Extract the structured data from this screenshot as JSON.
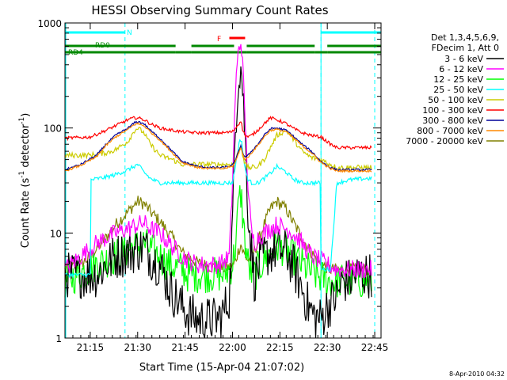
{
  "chart_data": {
    "type": "line",
    "title": "HESSI Observing Summary Count Rates",
    "xlabel": "Start Time (15-Apr-04 21:07:02)",
    "ylabel": "Count Rate (s⁻¹ detector⁻¹)",
    "ylabel_main": "Count Rate (s",
    "ylabel_exp1": "-1",
    "ylabel_mid": " detector",
    "ylabel_exp2": "-1",
    "ylabel_end": ")",
    "xlim": [
      0,
      100
    ],
    "ylim": [
      1,
      1000
    ],
    "yscale": "log",
    "grid": false,
    "xticks": [
      {
        "label": "21:15",
        "x": 8
      },
      {
        "label": "21:30",
        "x": 23
      },
      {
        "label": "21:45",
        "x": 38
      },
      {
        "label": "22:00",
        "x": 53
      },
      {
        "label": "22:15",
        "x": 68
      },
      {
        "label": "22:30",
        "x": 83
      },
      {
        "label": "22:45",
        "x": 98
      }
    ],
    "yticks": [
      {
        "label": "1",
        "y": 1
      },
      {
        "label": "10",
        "y": 10
      },
      {
        "label": "100",
        "y": 100
      },
      {
        "label": "1000",
        "y": 1000
      }
    ],
    "timestamp": "8-Apr-2010 04:32",
    "legend_header": [
      "Det 1,3,4,5,6,9,",
      "FDecim 1, Att 0"
    ],
    "legend_placement": "right",
    "series": [
      {
        "name": "3 - 6 keV",
        "color": "#000000",
        "x": [
          0,
          10,
          13,
          16,
          20,
          23,
          25,
          27,
          30,
          33,
          37,
          39,
          42,
          45,
          48,
          50,
          52,
          53,
          54,
          55,
          55.8,
          56,
          57,
          58,
          59,
          60,
          61,
          63,
          65,
          67,
          70,
          72,
          75,
          77,
          79,
          81,
          83,
          86,
          88,
          90,
          92,
          95,
          97
        ],
        "y": [
          4,
          4,
          5,
          6,
          6.5,
          7,
          7.5,
          6,
          5,
          3,
          2,
          1.7,
          1.5,
          1.5,
          1.5,
          1.7,
          2.5,
          12,
          120,
          350,
          380,
          320,
          80,
          15,
          7,
          3.5,
          4.5,
          6,
          6.5,
          7,
          6.5,
          5,
          3,
          2,
          1.6,
          1.5,
          2,
          2.5,
          3.5,
          3.5,
          4,
          4,
          4
        ]
      },
      {
        "name": "6 - 12 keV",
        "color": "#ff00ff",
        "x": [
          0,
          10,
          13,
          16,
          20,
          23,
          25,
          27,
          30,
          33,
          37,
          39,
          42,
          45,
          48,
          50,
          52,
          53,
          54,
          55,
          55.8,
          56,
          57,
          58,
          59,
          60,
          61,
          63,
          65,
          67,
          70,
          72,
          75,
          77,
          79,
          81,
          83,
          86,
          88,
          90,
          92,
          95,
          97
        ],
        "y": [
          4.5,
          8,
          9,
          10,
          11,
          12,
          12.5,
          11,
          10,
          8,
          6,
          5.5,
          5,
          5,
          5,
          5.2,
          6,
          30,
          250,
          600,
          650,
          550,
          120,
          25,
          10,
          8,
          9,
          10,
          11,
          12,
          11,
          10,
          8,
          6.5,
          5.8,
          5.5,
          5,
          4.5,
          4.5,
          4.5,
          4.5,
          4.5,
          4.5
        ]
      },
      {
        "name": "12 - 25 keV",
        "color": "#00ff00",
        "x": [
          0,
          10,
          13,
          16,
          20,
          23,
          25,
          27,
          30,
          33,
          37,
          39,
          42,
          45,
          48,
          50,
          52,
          53,
          54,
          55,
          55.8,
          56,
          57,
          58,
          59,
          60,
          61,
          63,
          65,
          67,
          70,
          72,
          75,
          77,
          79,
          81,
          83,
          86,
          88,
          90,
          92,
          95,
          97
        ],
        "y": [
          3.5,
          5,
          5.5,
          6,
          7,
          7.5,
          8,
          7,
          6,
          5,
          4.5,
          4,
          4,
          4,
          4,
          4,
          4.5,
          5,
          8,
          20,
          24,
          18,
          8,
          5,
          4,
          4,
          4.5,
          5.5,
          6.5,
          7.5,
          7,
          6,
          5,
          4.5,
          4,
          3.8,
          3.5,
          3.5,
          3.5,
          3.5,
          3.5,
          3.5,
          3.5
        ]
      },
      {
        "name": "25 - 50 keV",
        "color": "#00ffff",
        "x": [
          0,
          8,
          8.01,
          13,
          16,
          20,
          23,
          25,
          27,
          30,
          34,
          37,
          37.01,
          42,
          46,
          50,
          53,
          54,
          55,
          55.8,
          56,
          57,
          58,
          59,
          61,
          63,
          65,
          67,
          70,
          72,
          75,
          78,
          81,
          81.01,
          84,
          86,
          90,
          95,
          97
        ],
        "y": [
          4,
          4,
          32,
          34,
          36,
          40,
          45,
          38,
          33,
          30,
          30,
          30,
          30,
          30,
          30,
          30,
          30,
          45,
          70,
          80,
          70,
          40,
          32,
          30,
          30,
          33,
          37,
          43,
          38,
          33,
          30,
          30,
          30,
          4.5,
          4.5,
          30,
          32,
          33,
          33
        ]
      },
      {
        "name": "50 - 100 keV",
        "color": "#cccc00",
        "x": [
          0,
          8,
          13,
          16,
          20,
          22,
          23,
          25,
          27,
          30,
          34,
          37,
          42,
          46,
          50,
          53,
          54,
          55,
          55.8,
          56,
          57,
          58,
          59,
          61,
          63,
          65,
          67,
          70,
          72,
          75,
          78,
          81,
          84,
          86,
          90,
          95,
          97
        ],
        "y": [
          55,
          55,
          58,
          62,
          75,
          95,
          100,
          90,
          70,
          55,
          50,
          45,
          45,
          45,
          45,
          45,
          50,
          60,
          70,
          60,
          45,
          42,
          42,
          43,
          50,
          65,
          85,
          95,
          80,
          60,
          52,
          50,
          45,
          42,
          42,
          42,
          42
        ]
      },
      {
        "name": "100 - 300 keV",
        "color": "#ff0000",
        "x": [
          0,
          8,
          13,
          16,
          20,
          22,
          23,
          25,
          27,
          30,
          34,
          37,
          42,
          46,
          50,
          53,
          54,
          55,
          55.8,
          56,
          57,
          58,
          59,
          61,
          63,
          65,
          67,
          70,
          72,
          75,
          78,
          81,
          84,
          86,
          90,
          95,
          97
        ],
        "y": [
          80,
          82,
          95,
          105,
          120,
          125,
          125,
          120,
          110,
          100,
          95,
          92,
          90,
          90,
          90,
          92,
          100,
          110,
          120,
          100,
          85,
          82,
          85,
          95,
          110,
          125,
          120,
          110,
          100,
          90,
          85,
          82,
          70,
          65,
          65,
          65,
          65
        ]
      },
      {
        "name": "300 - 800 keV",
        "color": "#000099",
        "x": [
          0,
          5,
          10,
          13,
          16,
          20,
          22,
          23,
          25,
          27,
          30,
          34,
          37,
          42,
          46,
          50,
          53,
          54,
          55,
          55.8,
          56,
          57,
          58,
          59,
          61,
          63,
          65,
          67,
          70,
          72,
          75,
          78,
          81,
          84,
          86,
          90,
          95,
          97
        ],
        "y": [
          40,
          45,
          55,
          70,
          85,
          100,
          112,
          115,
          110,
          95,
          80,
          60,
          48,
          43,
          42,
          42,
          44,
          50,
          60,
          70,
          60,
          52,
          55,
          60,
          70,
          85,
          98,
          100,
          95,
          85,
          70,
          60,
          48,
          42,
          40,
          40,
          40,
          40
        ]
      },
      {
        "name": "800 - 7000 keV",
        "color": "#ff8800",
        "x": [
          0,
          5,
          10,
          13,
          16,
          20,
          22,
          23,
          25,
          27,
          30,
          34,
          37,
          42,
          46,
          50,
          53,
          54,
          55,
          55.8,
          56,
          57,
          58,
          59,
          61,
          63,
          65,
          67,
          70,
          72,
          75,
          78,
          81,
          84,
          86,
          90,
          95,
          97
        ],
        "y": [
          39,
          44,
          53,
          68,
          82,
          97,
          108,
          110,
          105,
          92,
          77,
          58,
          47,
          42,
          41,
          41,
          43,
          48,
          58,
          68,
          58,
          50,
          53,
          58,
          68,
          82,
          95,
          97,
          92,
          82,
          68,
          58,
          47,
          41,
          39,
          39,
          39,
          39
        ]
      },
      {
        "name": "7000 - 20000 keV",
        "color": "#808000",
        "x": [
          0,
          5,
          8,
          10,
          13,
          16,
          20,
          23,
          25,
          27,
          30,
          34,
          37,
          42,
          46,
          50,
          53,
          54,
          55,
          55.8,
          56,
          57,
          58,
          59,
          61,
          63,
          65,
          67,
          70,
          72,
          75,
          78,
          81,
          84,
          86,
          90,
          95,
          97
        ],
        "y": [
          4.5,
          5,
          6,
          7,
          9,
          12,
          16,
          20,
          19,
          16,
          13,
          9,
          6.5,
          5.2,
          4.8,
          4.6,
          4.8,
          5.5,
          7,
          8,
          7,
          6,
          5.5,
          6,
          8,
          12,
          17,
          20,
          17,
          13,
          9,
          6.5,
          5,
          4.5,
          4.5,
          4.5,
          4.5,
          4.5
        ]
      }
    ],
    "annotations": {
      "state_bars": [
        {
          "label": "N",
          "color": "#00ffff",
          "segments": [
            [
              0,
              19
            ],
            [
              81,
              100
            ]
          ],
          "level": "top"
        },
        {
          "label": "RD0",
          "color": "#008800",
          "segments": [
            [
              0,
              35
            ],
            [
              40,
              53.5
            ],
            [
              57.5,
              79
            ],
            [
              83,
              100
            ]
          ],
          "level": "upper"
        },
        {
          "label": "RD4",
          "color": "#008800",
          "segments": [
            [
              0,
              35
            ],
            [
              40,
              53.5
            ],
            [
              57.5,
              79
            ],
            [
              83,
              100
            ]
          ],
          "level": "lower"
        },
        {
          "label": "F",
          "color": "#ff0000",
          "segments": [
            [
              52,
              57
            ]
          ],
          "level": "flare"
        }
      ],
      "dashed_lines": [
        19,
        81,
        98
      ],
      "solid_lines": [
        0,
        81
      ]
    }
  }
}
